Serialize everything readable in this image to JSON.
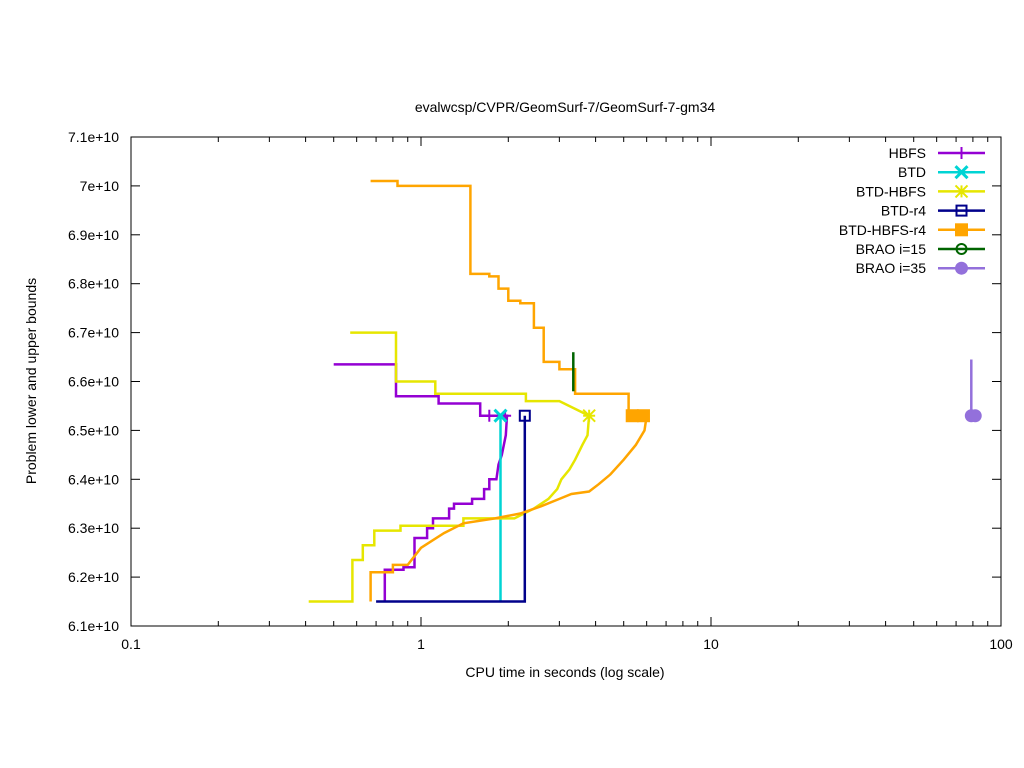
{
  "chart_data": {
    "type": "line",
    "title": "evalwcsp/CVPR/GeomSurf-7/GeomSurf-7-gm34",
    "xlabel": "CPU time in seconds (log scale)",
    "ylabel": "Problem lower and upper bounds",
    "xscale": "log",
    "xlim": [
      0.1,
      100
    ],
    "ylim": [
      61000000000,
      71000000000
    ],
    "x_ticks": [
      {
        "value": 0.1,
        "label": "0.1"
      },
      {
        "value": 1,
        "label": "1"
      },
      {
        "value": 10,
        "label": "10"
      },
      {
        "value": 100,
        "label": "100"
      }
    ],
    "y_ticks": [
      {
        "value": 61000000000,
        "label": "6.1e+10"
      },
      {
        "value": 62000000000,
        "label": "6.2e+10"
      },
      {
        "value": 63000000000,
        "label": "6.3e+10"
      },
      {
        "value": 64000000000,
        "label": "6.4e+10"
      },
      {
        "value": 65000000000,
        "label": "6.5e+10"
      },
      {
        "value": 66000000000,
        "label": "6.6e+10"
      },
      {
        "value": 67000000000,
        "label": "6.7e+10"
      },
      {
        "value": 68000000000,
        "label": "6.8e+10"
      },
      {
        "value": 69000000000,
        "label": "6.9e+10"
      },
      {
        "value": 70000000000,
        "label": "7e+10"
      },
      {
        "value": 71000000000,
        "label": "7.1e+10"
      }
    ],
    "grid": false,
    "legend_position": "top-right",
    "series": [
      {
        "name": "HBFS",
        "color": "#9400d3",
        "marker": "plus",
        "upper": [
          [
            0.5,
            66350000000
          ],
          [
            0.82,
            66350000000
          ],
          [
            0.82,
            65700000000
          ],
          [
            1.15,
            65700000000
          ],
          [
            1.15,
            65550000000
          ],
          [
            1.6,
            65550000000
          ],
          [
            1.6,
            65300000000
          ],
          [
            2.0,
            65300000000
          ]
        ],
        "lower": [
          [
            0.75,
            61500000000
          ],
          [
            0.75,
            62150000000
          ],
          [
            0.87,
            62150000000
          ],
          [
            0.87,
            62200000000
          ],
          [
            0.95,
            62200000000
          ],
          [
            0.95,
            62800000000
          ],
          [
            1.05,
            62800000000
          ],
          [
            1.05,
            63000000000
          ],
          [
            1.1,
            63000000000
          ],
          [
            1.1,
            63200000000
          ],
          [
            1.25,
            63200000000
          ],
          [
            1.25,
            63400000000
          ],
          [
            1.3,
            63400000000
          ],
          [
            1.3,
            63500000000
          ],
          [
            1.5,
            63500000000
          ],
          [
            1.5,
            63600000000
          ],
          [
            1.65,
            63600000000
          ],
          [
            1.65,
            63800000000
          ],
          [
            1.72,
            63800000000
          ],
          [
            1.72,
            64000000000
          ],
          [
            1.82,
            64000000000
          ],
          [
            1.85,
            64300000000
          ],
          [
            1.9,
            64500000000
          ],
          [
            1.93,
            64700000000
          ],
          [
            1.96,
            64900000000
          ],
          [
            1.97,
            65100000000
          ],
          [
            1.98,
            65300000000
          ]
        ],
        "markers": [
          [
            1.72,
            65300000000
          ],
          [
            1.95,
            65300000000
          ]
        ]
      },
      {
        "name": "BTD",
        "color": "#00d4d4",
        "marker": "cross",
        "upper": [],
        "lower": [
          [
            1.88,
            61500000000
          ],
          [
            1.88,
            65300000000
          ]
        ],
        "markers": [
          [
            1.88,
            65300000000
          ]
        ]
      },
      {
        "name": "BTD-HBFS",
        "color": "#e6e600",
        "marker": "star",
        "upper": [
          [
            0.57,
            67000000000
          ],
          [
            0.82,
            67000000000
          ],
          [
            0.82,
            66000000000
          ],
          [
            1.12,
            66000000000
          ],
          [
            1.12,
            65750000000
          ],
          [
            2.3,
            65750000000
          ],
          [
            2.3,
            65600000000
          ],
          [
            3.0,
            65600000000
          ],
          [
            3.8,
            65300000000
          ]
        ],
        "lower": [
          [
            0.41,
            61500000000
          ],
          [
            0.58,
            61500000000
          ],
          [
            0.58,
            62350000000
          ],
          [
            0.63,
            62350000000
          ],
          [
            0.63,
            62650000000
          ],
          [
            0.69,
            62650000000
          ],
          [
            0.69,
            62950000000
          ],
          [
            0.85,
            62950000000
          ],
          [
            0.85,
            63050000000
          ],
          [
            1.4,
            63050000000
          ],
          [
            1.4,
            63200000000
          ],
          [
            2.1,
            63200000000
          ],
          [
            2.45,
            63400000000
          ],
          [
            2.75,
            63600000000
          ],
          [
            2.95,
            63800000000
          ],
          [
            3.05,
            64000000000
          ],
          [
            3.25,
            64200000000
          ],
          [
            3.4,
            64400000000
          ],
          [
            3.6,
            64700000000
          ],
          [
            3.75,
            64900000000
          ],
          [
            3.8,
            65300000000
          ]
        ],
        "markers": [
          [
            3.8,
            65300000000
          ]
        ]
      },
      {
        "name": "BTD-r4",
        "color": "#00008b",
        "marker": "square",
        "upper": [],
        "lower": [
          [
            0.7,
            61500000000
          ],
          [
            2.28,
            61500000000
          ],
          [
            2.28,
            65300000000
          ]
        ],
        "markers": [
          [
            2.28,
            65300000000
          ]
        ]
      },
      {
        "name": "BTD-HBFS-r4",
        "color": "#ffa500",
        "marker": "filled-square",
        "upper": [
          [
            0.67,
            70100000000
          ],
          [
            0.83,
            70100000000
          ],
          [
            0.83,
            70000000000
          ],
          [
            1.48,
            70000000000
          ],
          [
            1.48,
            68200000000
          ],
          [
            1.72,
            68200000000
          ],
          [
            1.72,
            68150000000
          ],
          [
            1.85,
            68150000000
          ],
          [
            1.85,
            67900000000
          ],
          [
            2.0,
            67900000000
          ],
          [
            2.0,
            67650000000
          ],
          [
            2.2,
            67650000000
          ],
          [
            2.2,
            67600000000
          ],
          [
            2.45,
            67600000000
          ],
          [
            2.45,
            67100000000
          ],
          [
            2.65,
            67100000000
          ],
          [
            2.65,
            66400000000
          ],
          [
            3.0,
            66400000000
          ],
          [
            3.0,
            66250000000
          ],
          [
            3.4,
            66250000000
          ],
          [
            3.4,
            65750000000
          ],
          [
            5.2,
            65750000000
          ],
          [
            5.2,
            65300000000
          ]
        ],
        "lower": [
          [
            0.67,
            61500000000
          ],
          [
            0.67,
            62100000000
          ],
          [
            0.8,
            62100000000
          ],
          [
            0.8,
            62250000000
          ],
          [
            0.9,
            62250000000
          ],
          [
            1.0,
            62600000000
          ],
          [
            1.2,
            62900000000
          ],
          [
            1.4,
            63100000000
          ],
          [
            1.8,
            63200000000
          ],
          [
            2.2,
            63300000000
          ],
          [
            2.6,
            63450000000
          ],
          [
            3.0,
            63600000000
          ],
          [
            3.3,
            63700000000
          ],
          [
            3.8,
            63750000000
          ],
          [
            4.1,
            63900000000
          ],
          [
            4.5,
            64100000000
          ],
          [
            5.0,
            64400000000
          ],
          [
            5.5,
            64700000000
          ],
          [
            5.9,
            65000000000
          ],
          [
            6.0,
            65300000000
          ]
        ],
        "markers": [
          [
            5.35,
            65300000000
          ],
          [
            5.85,
            65300000000
          ]
        ]
      },
      {
        "name": "BRAO i=15",
        "color": "#006400",
        "marker": "circle",
        "upper": [
          [
            3.35,
            66600000000
          ],
          [
            3.35,
            65800000000
          ]
        ],
        "lower": [],
        "markers": []
      },
      {
        "name": "BRAO i=35",
        "color": "#9370db",
        "marker": "filled-circle",
        "upper": [
          [
            79,
            66450000000
          ],
          [
            79,
            65300000000
          ]
        ],
        "lower": [],
        "markers": [
          [
            79,
            65300000000
          ],
          [
            81.5,
            65300000000
          ]
        ]
      }
    ]
  }
}
